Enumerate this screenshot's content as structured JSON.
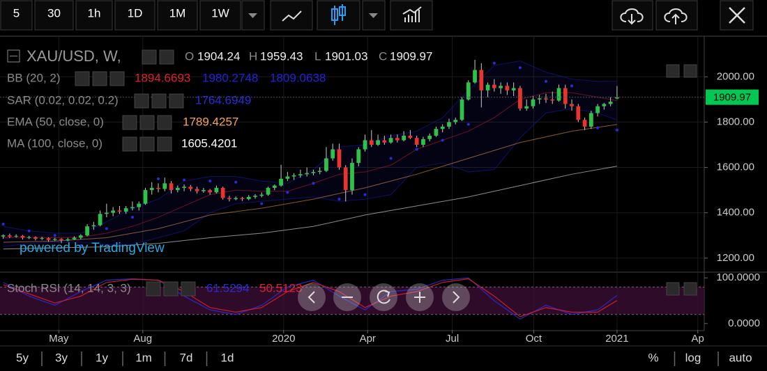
{
  "toolbar": {
    "intervals": [
      "5",
      "30",
      "1h",
      "1D",
      "1M",
      "1W"
    ],
    "active": "1W"
  },
  "ranges": [
    "5y",
    "3y",
    "1y",
    "1m",
    "7d",
    "1d"
  ],
  "scale_options": [
    "%",
    "log",
    "auto"
  ],
  "watermark": "powered by TradingView",
  "chart_data": {
    "type": "candlestick",
    "title": "XAU/USD, W,",
    "ohlc_labels": [
      "O",
      "H",
      "L",
      "C"
    ],
    "up_color": "#2ec24a",
    "down_color": "#e8342c",
    "xlim": [
      -0.5,
      108.5
    ],
    "xticks": [
      {
        "value": 8.6,
        "label": "May"
      },
      {
        "value": 21.6,
        "label": "Aug"
      },
      {
        "value": 43.4,
        "label": "2020"
      },
      {
        "value": 56.4,
        "label": "Apr"
      },
      {
        "value": 69.5,
        "label": "Jul"
      },
      {
        "value": 82.1,
        "label": "Oct"
      },
      {
        "value": 95,
        "label": "2021"
      },
      {
        "value": 107.5,
        "label": "Ap"
      }
    ],
    "ylim": [
      1141,
      2176
    ],
    "yticks": [
      {
        "value": 1200,
        "label": "1200.00"
      },
      {
        "value": 1400,
        "label": "1400.00"
      },
      {
        "value": 1600,
        "label": "1600.00"
      },
      {
        "value": 1800,
        "label": "1800.00"
      },
      {
        "value": 2000,
        "label": "2000.00"
      }
    ],
    "grid": true,
    "candles": [
      [
        1295,
        1305,
        1285,
        1300
      ],
      [
        1300,
        1308,
        1288,
        1295
      ],
      [
        1295,
        1305,
        1290,
        1298
      ],
      [
        1298,
        1302,
        1282,
        1290
      ],
      [
        1290,
        1298,
        1284,
        1292
      ],
      [
        1292,
        1296,
        1278,
        1285
      ],
      [
        1285,
        1294,
        1280,
        1288
      ],
      [
        1288,
        1292,
        1272,
        1280
      ],
      [
        1280,
        1290,
        1276,
        1284
      ],
      [
        1284,
        1288,
        1266,
        1278
      ],
      [
        1278,
        1290,
        1274,
        1283
      ],
      [
        1283,
        1296,
        1280,
        1290
      ],
      [
        1290,
        1305,
        1282,
        1300
      ],
      [
        1300,
        1350,
        1296,
        1340
      ],
      [
        1340,
        1360,
        1325,
        1345
      ],
      [
        1345,
        1410,
        1340,
        1395
      ],
      [
        1395,
        1440,
        1380,
        1400
      ],
      [
        1400,
        1425,
        1385,
        1410
      ],
      [
        1410,
        1430,
        1395,
        1405
      ],
      [
        1405,
        1430,
        1395,
        1420
      ],
      [
        1420,
        1450,
        1410,
        1425
      ],
      [
        1425,
        1450,
        1410,
        1440
      ],
      [
        1440,
        1510,
        1435,
        1500
      ],
      [
        1500,
        1535,
        1480,
        1510
      ],
      [
        1510,
        1530,
        1490,
        1505
      ],
      [
        1505,
        1555,
        1495,
        1530
      ],
      [
        1530,
        1540,
        1485,
        1500
      ],
      [
        1500,
        1520,
        1490,
        1510
      ],
      [
        1510,
        1525,
        1495,
        1515
      ],
      [
        1515,
        1522,
        1495,
        1505
      ],
      [
        1505,
        1515,
        1485,
        1495
      ],
      [
        1495,
        1510,
        1488,
        1500
      ],
      [
        1500,
        1505,
        1480,
        1490
      ],
      [
        1490,
        1520,
        1485,
        1510
      ],
      [
        1510,
        1515,
        1458,
        1465
      ],
      [
        1465,
        1475,
        1450,
        1460
      ],
      [
        1460,
        1472,
        1455,
        1465
      ],
      [
        1465,
        1470,
        1452,
        1460
      ],
      [
        1460,
        1478,
        1455,
        1470
      ],
      [
        1470,
        1482,
        1462,
        1475
      ],
      [
        1475,
        1490,
        1468,
        1480
      ],
      [
        1480,
        1515,
        1475,
        1510
      ],
      [
        1510,
        1525,
        1500,
        1520
      ],
      [
        1520,
        1612,
        1515,
        1550
      ],
      [
        1550,
        1580,
        1540,
        1560
      ],
      [
        1560,
        1575,
        1545,
        1565
      ],
      [
        1565,
        1590,
        1555,
        1570
      ],
      [
        1570,
        1600,
        1560,
        1575
      ],
      [
        1575,
        1590,
        1565,
        1580
      ],
      [
        1580,
        1600,
        1570,
        1585
      ],
      [
        1585,
        1690,
        1580,
        1640
      ],
      [
        1640,
        1705,
        1630,
        1680
      ],
      [
        1680,
        1705,
        1590,
        1600
      ],
      [
        1600,
        1610,
        1450,
        1500
      ],
      [
        1500,
        1640,
        1480,
        1620
      ],
      [
        1620,
        1690,
        1605,
        1680
      ],
      [
        1680,
        1745,
        1670,
        1720
      ],
      [
        1720,
        1765,
        1690,
        1700
      ],
      [
        1700,
        1745,
        1695,
        1720
      ],
      [
        1720,
        1740,
        1700,
        1710
      ],
      [
        1710,
        1745,
        1705,
        1730
      ],
      [
        1730,
        1745,
        1710,
        1720
      ],
      [
        1720,
        1760,
        1715,
        1740
      ],
      [
        1740,
        1765,
        1725,
        1730
      ],
      [
        1730,
        1740,
        1690,
        1700
      ],
      [
        1700,
        1735,
        1690,
        1725
      ],
      [
        1725,
        1750,
        1715,
        1740
      ],
      [
        1740,
        1780,
        1735,
        1770
      ],
      [
        1770,
        1790,
        1755,
        1780
      ],
      [
        1780,
        1815,
        1770,
        1800
      ],
      [
        1800,
        1820,
        1790,
        1810
      ],
      [
        1810,
        1910,
        1805,
        1900
      ],
      [
        1900,
        1985,
        1895,
        1975
      ],
      [
        1975,
        2075,
        1970,
        2030
      ],
      [
        2030,
        2060,
        1865,
        1940
      ],
      [
        1940,
        1975,
        1910,
        1965
      ],
      [
        1965,
        1990,
        1935,
        1950
      ],
      [
        1950,
        1975,
        1925,
        1960
      ],
      [
        1960,
        1975,
        1920,
        1940
      ],
      [
        1940,
        1975,
        1915,
        1950
      ],
      [
        1950,
        1960,
        1850,
        1860
      ],
      [
        1860,
        1900,
        1850,
        1870
      ],
      [
        1870,
        1915,
        1860,
        1900
      ],
      [
        1900,
        1920,
        1880,
        1905
      ],
      [
        1905,
        1925,
        1885,
        1900
      ],
      [
        1900,
        1935,
        1880,
        1895
      ],
      [
        1895,
        1965,
        1890,
        1950
      ],
      [
        1950,
        1965,
        1860,
        1880
      ],
      [
        1880,
        1900,
        1850,
        1870
      ],
      [
        1870,
        1880,
        1800,
        1810
      ],
      [
        1810,
        1820,
        1765,
        1780
      ],
      [
        1780,
        1850,
        1770,
        1840
      ],
      [
        1840,
        1880,
        1825,
        1870
      ],
      [
        1870,
        1885,
        1855,
        1880
      ],
      [
        1880,
        1910,
        1870,
        1890
      ],
      [
        1904.24,
        1959.43,
        1901.03,
        1909.97
      ]
    ],
    "bb": {
      "label": "BB (20, 2)",
      "middle_color": "#e0202a",
      "band_color": "#2222dd",
      "x": [
        0,
        4,
        8,
        12,
        16,
        20,
        24,
        28,
        32,
        36,
        40,
        44,
        48,
        52,
        56,
        60,
        64,
        68,
        72,
        76,
        80,
        84,
        88,
        92,
        95
      ],
      "middle": [
        1290,
        1292,
        1290,
        1292,
        1310,
        1340,
        1380,
        1430,
        1480,
        1500,
        1495,
        1495,
        1530,
        1570,
        1580,
        1610,
        1680,
        1720,
        1760,
        1820,
        1900,
        1930,
        1930,
        1910,
        1894.6693
      ],
      "upper": [
        1340,
        1320,
        1310,
        1310,
        1360,
        1420,
        1460,
        1540,
        1560,
        1560,
        1540,
        1530,
        1590,
        1690,
        1700,
        1740,
        1760,
        1820,
        1940,
        2050,
        2070,
        2020,
        1990,
        1980,
        1980.2748
      ],
      "lower": [
        1250,
        1265,
        1270,
        1270,
        1260,
        1260,
        1290,
        1320,
        1400,
        1440,
        1450,
        1460,
        1470,
        1450,
        1460,
        1480,
        1600,
        1620,
        1580,
        1590,
        1730,
        1840,
        1860,
        1840,
        1809.0638
      ]
    },
    "sar": {
      "label": "SAR (0.02, 0.02, 0.2)",
      "color": "#2b2bd9",
      "x": [
        0,
        4,
        8,
        12,
        16,
        20,
        24,
        28,
        32,
        36,
        40,
        44,
        48,
        52,
        56,
        60,
        64,
        68,
        72,
        76,
        80,
        84,
        88,
        92,
        95
      ],
      "values": [
        1350,
        1320,
        1300,
        1255,
        1330,
        1380,
        1550,
        1545,
        1540,
        1535,
        1440,
        1490,
        1530,
        1460,
        1480,
        1640,
        1680,
        1720,
        1790,
        2060,
        2040,
        1980,
        1960,
        1775,
        1764.6949
      ]
    },
    "ema": {
      "label": "EMA (50, close, 0)",
      "color": "#f7a35c",
      "x": [
        0,
        8,
        16,
        24,
        32,
        40,
        48,
        56,
        64,
        72,
        80,
        88,
        95
      ],
      "values": [
        1270,
        1275,
        1290,
        1330,
        1390,
        1420,
        1460,
        1510,
        1570,
        1640,
        1710,
        1760,
        1789.4257
      ]
    },
    "ma": {
      "label": "MA (100, close, 0)",
      "color": "#ffffff",
      "x": [
        0,
        8,
        16,
        24,
        32,
        40,
        48,
        56,
        64,
        72,
        80,
        88,
        95
      ],
      "values": [
        1240,
        1245,
        1250,
        1265,
        1290,
        1310,
        1340,
        1390,
        1430,
        1470,
        1520,
        1570,
        1605.4201
      ]
    },
    "stoch": {
      "label": "Stoch RSI (14, 14, 3, 3)",
      "k_color": "#2b2bd9",
      "d_color": "#e0202a",
      "ylim": [
        -14,
        111
      ],
      "yticks": [
        {
          "value": 100,
          "label": "100.0000"
        },
        {
          "value": 0,
          "label": "0.0000"
        }
      ],
      "x": [
        0,
        4,
        8,
        12,
        16,
        20,
        24,
        28,
        32,
        36,
        40,
        44,
        48,
        52,
        56,
        60,
        64,
        68,
        72,
        76,
        80,
        84,
        88,
        92,
        95
      ],
      "k": [
        90,
        60,
        40,
        70,
        95,
        98,
        95,
        60,
        30,
        20,
        40,
        80,
        95,
        60,
        30,
        70,
        75,
        95,
        100,
        50,
        10,
        40,
        20,
        30,
        61.5294
      ],
      "d": [
        85,
        65,
        45,
        60,
        90,
        97,
        95,
        70,
        35,
        25,
        35,
        70,
        90,
        70,
        35,
        60,
        70,
        90,
        98,
        60,
        15,
        35,
        25,
        25,
        50.5123
      ]
    }
  }
}
